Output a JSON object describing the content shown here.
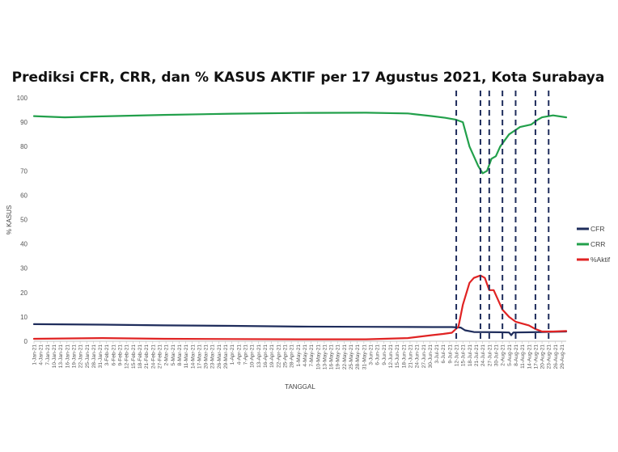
{
  "chart_data": {
    "type": "line",
    "title": "Prediksi CFR, CRR, dan % KASUS AKTIF per 17 Agustus 2021, Kota Surabaya",
    "xlabel": "TANGGAL",
    "ylabel": "% KASUS",
    "ylim": [
      0,
      100
    ],
    "yticks": [
      0,
      10,
      20,
      30,
      40,
      50,
      60,
      70,
      80,
      90,
      100
    ],
    "grid": false,
    "legend": "right",
    "x_start": "1-Jan-21",
    "x_end": "31-Aug-21",
    "categories": [
      "1-Jan-21",
      "4-Jan-21",
      "7-Jan-21",
      "10-Jan-21",
      "13-Jan-21",
      "16-Jan-21",
      "19-Jan-21",
      "22-Jan-21",
      "25-Jan-21",
      "28-Jan-21",
      "31-Jan-21",
      "3-Feb-21",
      "6-Feb-21",
      "9-Feb-21",
      "12-Feb-21",
      "15-Feb-21",
      "18-Feb-21",
      "21-Feb-21",
      "24-Feb-21",
      "27-Feb-21",
      "2-Mar-21",
      "5-Mar-21",
      "8-Mar-21",
      "11-Mar-21",
      "14-Mar-21",
      "17-Mar-21",
      "20-Mar-21",
      "23-Mar-21",
      "26-Mar-21",
      "29-Mar-21",
      "1-Apr-21",
      "4-Apr-21",
      "7-Apr-21",
      "10-Apr-21",
      "13-Apr-21",
      "16-Apr-21",
      "19-Apr-21",
      "22-Apr-21",
      "25-Apr-21",
      "28-Apr-21",
      "1-May-21",
      "4-May-21",
      "7-May-21",
      "10-May-21",
      "13-May-21",
      "16-May-21",
      "19-May-21",
      "22-May-21",
      "25-May-21",
      "28-May-21",
      "31-May-21",
      "3-Jun-21",
      "6-Jun-21",
      "9-Jun-21",
      "12-Jun-21",
      "15-Jun-21",
      "18-Jun-21",
      "21-Jun-21",
      "24-Jun-21",
      "27-Jun-21",
      "30-Jun-21",
      "3-Jul-21",
      "6-Jul-21",
      "9-Jul-21",
      "12-Jul-21",
      "15-Jul-21",
      "18-Jul-21",
      "21-Jul-21",
      "24-Jul-21",
      "27-Jul-21",
      "30-Jul-21",
      "2-Aug-21",
      "5-Aug-21",
      "8-Aug-21",
      "11-Aug-21",
      "14-Aug-21",
      "17-Aug-21",
      "20-Aug-21",
      "23-Aug-21",
      "26-Aug-21",
      "29-Aug-21"
    ],
    "series": [
      {
        "name": "CFR",
        "color": "#1f2d5c",
        "x": [
          "1-Jan-21",
          "1-Feb-21",
          "1-Mar-21",
          "1-Apr-21",
          "1-May-21",
          "1-Jun-21",
          "1-Jul-21",
          "10-Jul-21",
          "14-Jul-21",
          "16-Jul-21",
          "20-Jul-21",
          "1-Aug-21",
          "5-Aug-21",
          "6-Aug-21",
          "7-Aug-21",
          "15-Aug-21",
          "20-Aug-21",
          "31-Aug-21"
        ],
        "y": [
          7.0,
          6.8,
          6.5,
          6.3,
          6.0,
          5.9,
          5.8,
          5.8,
          5.6,
          4.5,
          3.8,
          3.7,
          3.6,
          2.5,
          3.6,
          3.7,
          3.8,
          4.0
        ]
      },
      {
        "name": "CRR",
        "color": "#22a04b",
        "x": [
          "1-Jan-21",
          "15-Jan-21",
          "1-Feb-21",
          "1-Mar-21",
          "1-Apr-21",
          "1-May-21",
          "1-Jun-21",
          "20-Jun-21",
          "1-Jul-21",
          "7-Jul-21",
          "12-Jul-21",
          "15-Jul-21",
          "18-Jul-21",
          "22-Jul-21",
          "24-Jul-21",
          "26-Jul-21",
          "28-Jul-21",
          "30-Jul-21",
          "1-Aug-21",
          "5-Aug-21",
          "10-Aug-21",
          "15-Aug-21",
          "18-Aug-21",
          "20-Aug-21",
          "25-Aug-21",
          "31-Aug-21"
        ],
        "y": [
          92.5,
          92.0,
          92.4,
          93.0,
          93.5,
          93.8,
          93.9,
          93.6,
          92.5,
          91.8,
          91.0,
          90.0,
          80.0,
          72.0,
          69.0,
          70.0,
          75.0,
          76.0,
          80.0,
          85.0,
          88.0,
          89.0,
          91.0,
          92.0,
          92.8,
          92.0
        ]
      },
      {
        "name": "%Aktif",
        "color": "#e02323",
        "x": [
          "1-Jan-21",
          "1-Feb-21",
          "1-Mar-21",
          "1-Apr-21",
          "1-May-21",
          "1-Jun-21",
          "20-Jun-21",
          "1-Jul-21",
          "6-Jul-21",
          "10-Jul-21",
          "13-Jul-21",
          "15-Jul-21",
          "18-Jul-21",
          "20-Jul-21",
          "23-Jul-21",
          "25-Jul-21",
          "27-Jul-21",
          "29-Jul-21",
          "31-Jul-21",
          "2-Aug-21",
          "5-Aug-21",
          "8-Aug-21",
          "10-Aug-21",
          "14-Aug-21",
          "17-Aug-21",
          "20-Aug-21",
          "25-Aug-21",
          "31-Aug-21"
        ],
        "y": [
          1.0,
          1.3,
          1.0,
          0.9,
          0.8,
          0.8,
          1.3,
          2.5,
          3.0,
          3.5,
          6.0,
          15.0,
          24.0,
          26.0,
          27.0,
          26.0,
          21.0,
          21.0,
          17.0,
          13.0,
          10.0,
          8.0,
          7.5,
          6.5,
          5.0,
          4.0,
          4.0,
          4.2
        ]
      }
    ],
    "annotations": {
      "vertical_dashed_lines": [
        "12-Jul-21",
        "23-Jul-21",
        "27-Jul-21",
        "2-Aug-21",
        "8-Aug-21",
        "17-Aug-21",
        "23-Aug-21"
      ]
    }
  }
}
